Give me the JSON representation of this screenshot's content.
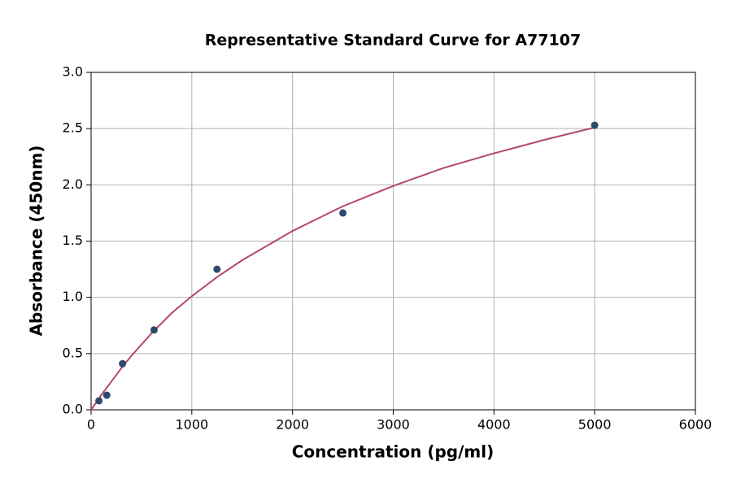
{
  "chart_data": {
    "type": "scatter",
    "title": "Representative Standard Curve for A77107",
    "x_label": "Concentration (pg/ml)",
    "y_label": "Absorbance (450nm)",
    "xlim": [
      0,
      6000
    ],
    "xticks": [
      0,
      1000,
      2000,
      3000,
      4000,
      5000,
      6000
    ],
    "ylim": [
      0,
      3
    ],
    "yticks": [
      {
        "value": 0,
        "label": "0.0"
      },
      {
        "value": 0.5,
        "label": "0.5"
      },
      {
        "value": 1,
        "label": "1.0"
      },
      {
        "value": 1.5,
        "label": "1.5"
      },
      {
        "value": 2,
        "label": "2.0"
      },
      {
        "value": 2.5,
        "label": "2.5"
      },
      {
        "value": 3,
        "label": "3.0"
      }
    ],
    "grid": true,
    "series": [
      {
        "type": "line",
        "color": "#b5466b",
        "x": [
          0,
          100,
          200,
          300,
          400,
          600,
          800,
          1000,
          1250,
          1500,
          2000,
          2500,
          3000,
          3500,
          4000,
          4500,
          5000
        ],
        "values": [
          0,
          0.13,
          0.25,
          0.37,
          0.48,
          0.68,
          0.86,
          1.01,
          1.18,
          1.33,
          1.59,
          1.81,
          1.99,
          2.15,
          2.28,
          2.4,
          2.51
        ]
      },
      {
        "type": "scatter",
        "color": "#2d4a6b",
        "x": [
          78,
          156,
          312,
          625,
          1250,
          2500,
          5000
        ],
        "values": [
          0.08,
          0.13,
          0.41,
          0.71,
          1.25,
          1.75,
          2.53
        ]
      }
    ]
  }
}
